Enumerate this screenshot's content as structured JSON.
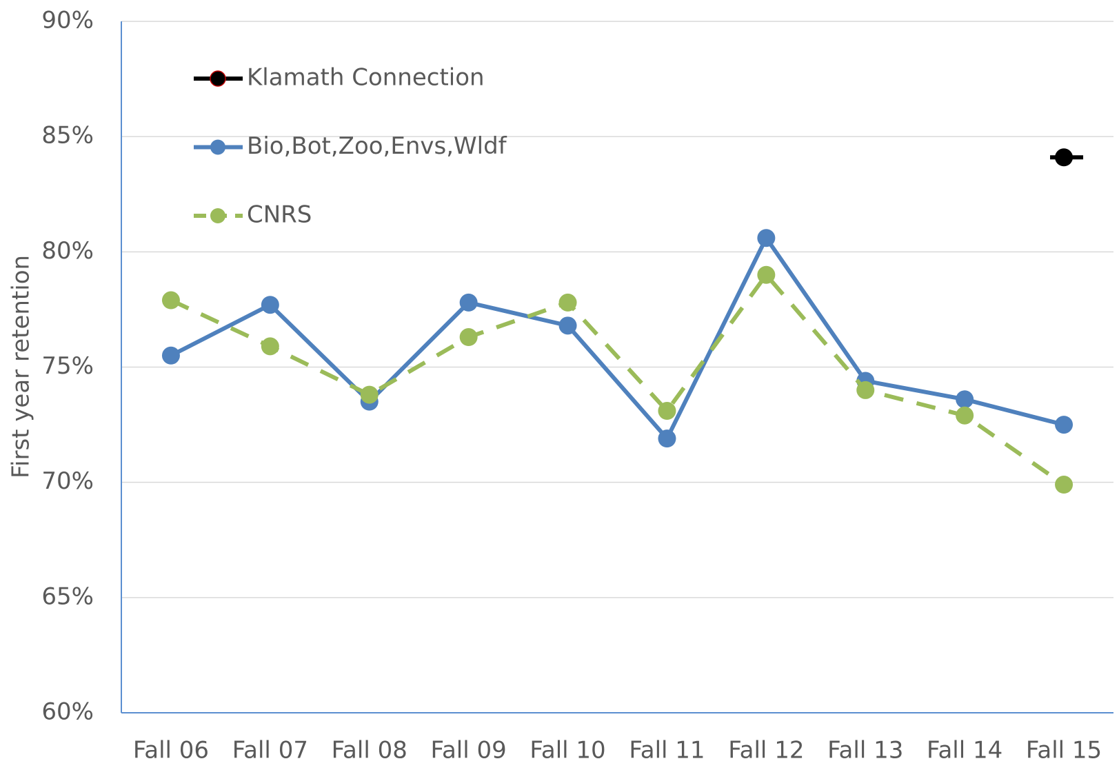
{
  "chart_data": {
    "type": "line",
    "y_label": "First year retention",
    "categories": [
      "Fall 06",
      "Fall 07",
      "Fall 08",
      "Fall 09",
      "Fall 10",
      "Fall 11",
      "Fall 12",
      "Fall 13",
      "Fall 14",
      "Fall 15"
    ],
    "series": [
      {
        "name": "Klamath Connection",
        "color": "#000000",
        "line_style": "solid",
        "values": [
          null,
          null,
          null,
          null,
          null,
          null,
          null,
          null,
          null,
          84.1
        ]
      },
      {
        "name": "Bio,Bot,Zoo,Envs,Wldf",
        "color": "#4f81bd",
        "line_style": "solid",
        "values": [
          75.5,
          77.7,
          73.5,
          77.8,
          76.8,
          71.9,
          80.6,
          74.4,
          73.6,
          72.5
        ]
      },
      {
        "name": "CNRS",
        "color": "#9bbb59",
        "line_style": "dashed",
        "values": [
          77.9,
          75.9,
          73.8,
          76.3,
          77.8,
          73.1,
          79.0,
          74.0,
          72.9,
          69.9
        ]
      }
    ],
    "ylim": [
      60,
      90
    ],
    "yticks": [
      {
        "value": 60,
        "label": "60%"
      },
      {
        "value": 65,
        "label": "65%"
      },
      {
        "value": 70,
        "label": "70%"
      },
      {
        "value": 75,
        "label": "75%"
      },
      {
        "value": 80,
        "label": "80%"
      },
      {
        "value": 85,
        "label": "85%"
      },
      {
        "value": 90,
        "label": "90%"
      }
    ],
    "grid": true,
    "legend": "upper left"
  }
}
